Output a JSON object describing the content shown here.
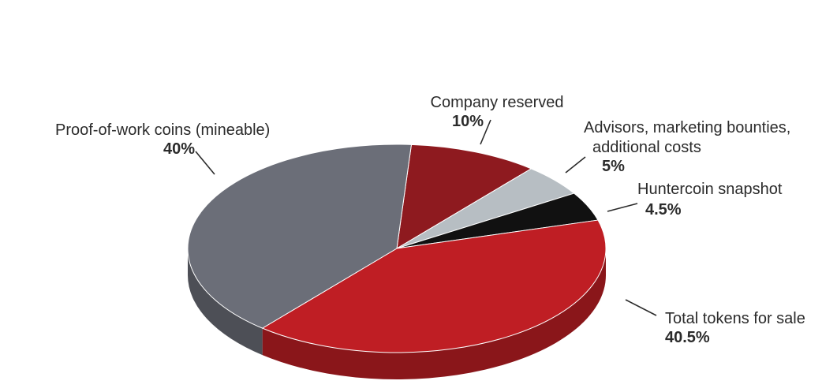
{
  "chart_data": {
    "type": "pie",
    "title": "",
    "slices": [
      {
        "label": "Company reserved",
        "value": 10,
        "value_text": "10%",
        "color": "#8e1a1f"
      },
      {
        "label": "Advisors, marketing bounties, additional costs",
        "label_lines": [
          "Advisors, marketing bounties,",
          "additional costs"
        ],
        "value": 5,
        "value_text": "5%",
        "color": "#b7bec3"
      },
      {
        "label": "Huntercoin snapshot",
        "value": 4.5,
        "value_text": "4.5%",
        "color": "#111111"
      },
      {
        "label": "Total tokens for sale",
        "value": 40.5,
        "value_text": "40.5%",
        "color": "#bf1e24"
      },
      {
        "label": "Proof-of-work coins (mineable)",
        "value": 40,
        "value_text": "40%",
        "color": "#6b6e78"
      }
    ]
  }
}
